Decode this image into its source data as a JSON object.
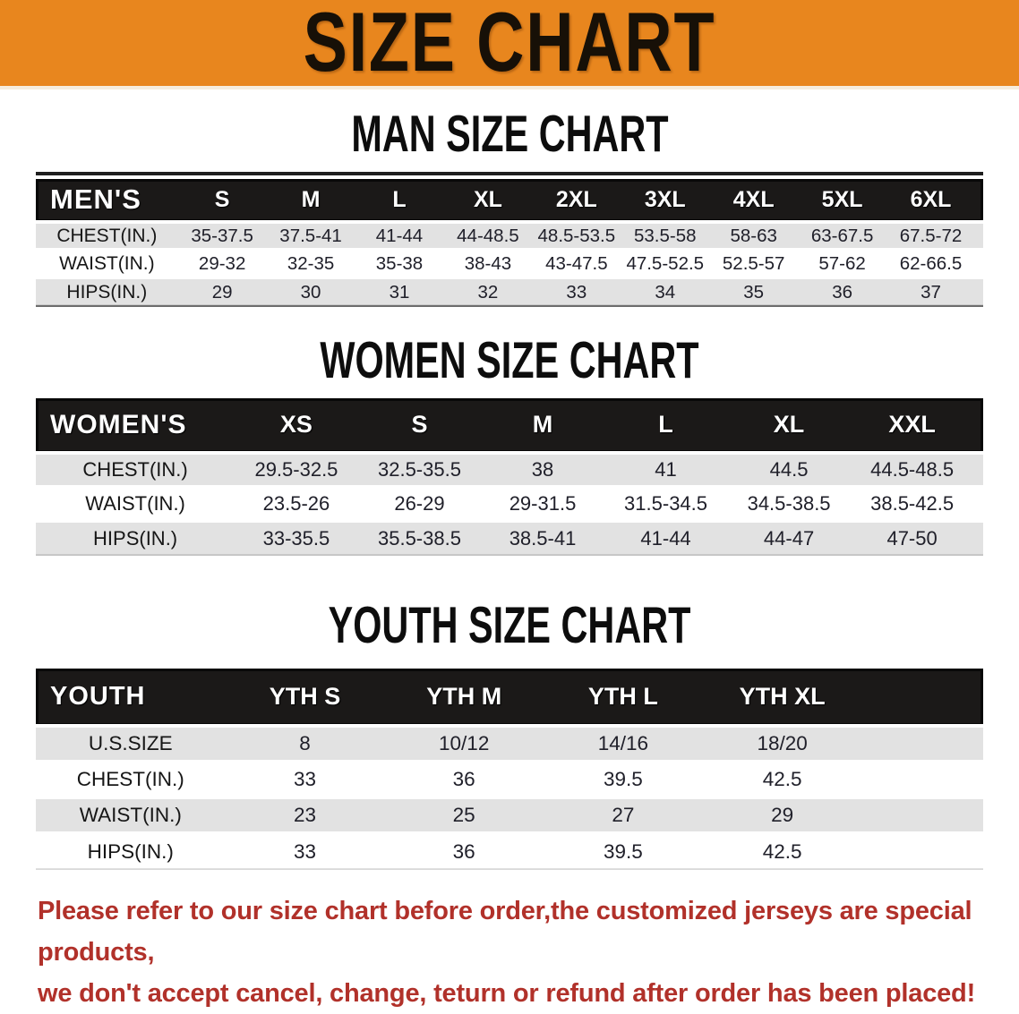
{
  "theme": {
    "banner_bg": "#E8861E",
    "bar_bg": "#1B1918",
    "stripe_bg": "#E2E2E2",
    "footer_red": "#B1312A"
  },
  "banner": {
    "title": "SIZE CHART"
  },
  "men": {
    "heading": "MAN SIZE CHART",
    "table": {
      "corner_label": "MEN'S",
      "columns": [
        "S",
        "M",
        "L",
        "XL",
        "2XL",
        "3XL",
        "4XL",
        "5XL",
        "6XL"
      ],
      "rows": [
        {
          "label": "CHEST(IN.)",
          "values": [
            "35-37.5",
            "37.5-41",
            "41-44",
            "44-48.5",
            "48.5-53.5",
            "53.5-58",
            "58-63",
            "63-67.5",
            "67.5-72"
          ]
        },
        {
          "label": "WAIST(IN.)",
          "values": [
            "29-32",
            "32-35",
            "35-38",
            "38-43",
            "43-47.5",
            "47.5-52.5",
            "52.5-57",
            "57-62",
            "62-66.5"
          ]
        },
        {
          "label": "HIPS(IN.)",
          "values": [
            "29",
            "30",
            "31",
            "32",
            "33",
            "34",
            "35",
            "36",
            "37"
          ]
        }
      ]
    }
  },
  "women": {
    "heading": "WOMEN SIZE CHART",
    "table": {
      "corner_label": "WOMEN'S",
      "columns": [
        "XS",
        "S",
        "M",
        "L",
        "XL",
        "XXL"
      ],
      "rows": [
        {
          "label": "CHEST(IN.)",
          "values": [
            "29.5-32.5",
            "32.5-35.5",
            "38",
            "41",
            "44.5",
            "44.5-48.5"
          ]
        },
        {
          "label": "WAIST(IN.)",
          "values": [
            "23.5-26",
            "26-29",
            "29-31.5",
            "31.5-34.5",
            "34.5-38.5",
            "38.5-42.5"
          ]
        },
        {
          "label": "HIPS(IN.)",
          "values": [
            "33-35.5",
            "35.5-38.5",
            "38.5-41",
            "41-44",
            "44-47",
            "47-50"
          ]
        }
      ]
    }
  },
  "youth": {
    "heading": "YOUTH SIZE CHART",
    "table": {
      "corner_label": "YOUTH",
      "columns": [
        "YTH S",
        "YTH M",
        "YTH L",
        "YTH XL"
      ],
      "rows": [
        {
          "label": "U.S.SIZE",
          "values": [
            "8",
            "10/12",
            "14/16",
            "18/20"
          ]
        },
        {
          "label": "CHEST(IN.)",
          "values": [
            "33",
            "36",
            "39.5",
            "42.5"
          ]
        },
        {
          "label": "WAIST(IN.)",
          "values": [
            "23",
            "25",
            "27",
            "29"
          ]
        },
        {
          "label": "HIPS(IN.)",
          "values": [
            "33",
            "36",
            "39.5",
            "42.5"
          ]
        }
      ]
    }
  },
  "footer": {
    "lines": [
      "Please refer to our size chart before order,the customized jerseys are special products,",
      "we don't accept cancel, change, teturn or refund after order has been placed!"
    ]
  }
}
